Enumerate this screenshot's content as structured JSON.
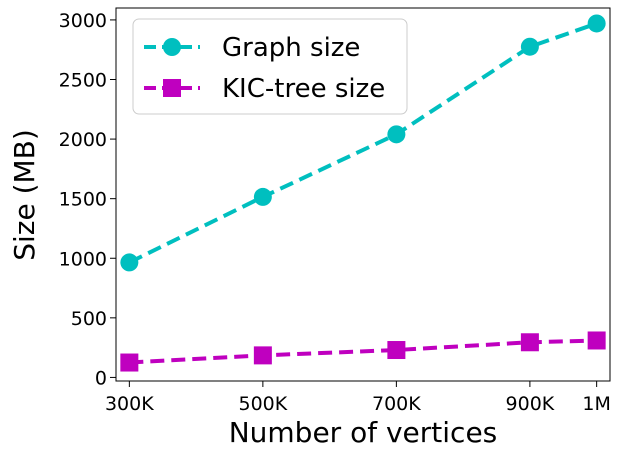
{
  "chart_data": {
    "type": "line",
    "x": [
      300000,
      500000,
      700000,
      900000,
      1000000
    ],
    "xticks": [
      "300K",
      "500K",
      "700K",
      "900K",
      "1M"
    ],
    "xlabel": "Number of vertices",
    "ylabel": "Size (MB)",
    "ylim": [
      -30,
      3100
    ],
    "yticks": [
      0,
      500,
      1000,
      1500,
      2000,
      2500,
      3000
    ],
    "xlim": [
      280000,
      1020000
    ],
    "series": [
      {
        "name": "Graph size",
        "values": [
          965,
          1515,
          2040,
          2775,
          2970
        ],
        "color": "#00bfbf",
        "marker": "circle",
        "linestyle": "dashed"
      },
      {
        "name": "KIC-tree size",
        "values": [
          125,
          185,
          230,
          295,
          310
        ],
        "color": "#bf00bf",
        "marker": "square",
        "linestyle": "dashed"
      }
    ],
    "legend_position": "top-left"
  }
}
